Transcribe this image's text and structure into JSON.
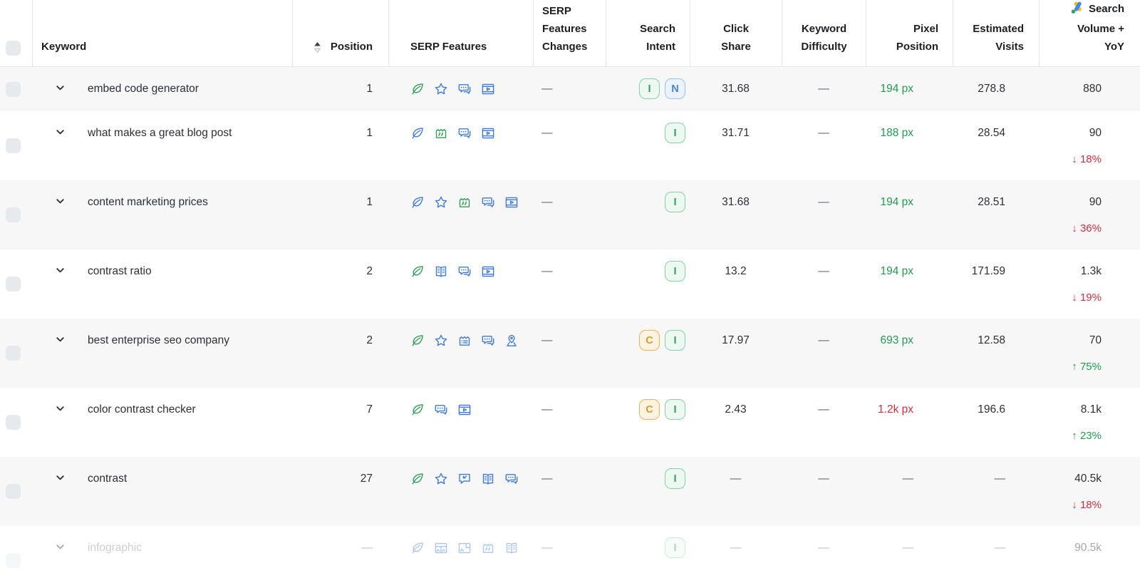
{
  "header": {
    "select_all": "",
    "columns": [
      {
        "id": "keyword",
        "label": "Keyword"
      },
      {
        "id": "position",
        "label": "Position",
        "sorted": true
      },
      {
        "id": "serp_features",
        "label": "SERP Features"
      },
      {
        "id": "serp_features_changes",
        "label": "SERP Features Changes"
      },
      {
        "id": "search_intent",
        "label": "Search Intent"
      },
      {
        "id": "click_share",
        "label": "Click Share"
      },
      {
        "id": "keyword_difficulty",
        "label": "Keyword Difficulty"
      },
      {
        "id": "pixel_position",
        "label": "Pixel Position"
      },
      {
        "id": "estimated_visits",
        "label": "Estimated Visits"
      },
      {
        "id": "search_volume",
        "label": "Search Volume + YoY",
        "icon": "google-ads-icon"
      }
    ]
  },
  "rows": [
    {
      "keyword": "embed code generator",
      "position": "1",
      "serp_features": [
        {
          "name": "organic-leaf-icon",
          "color": "green"
        },
        {
          "name": "review-stars-icon",
          "color": "blue"
        },
        {
          "name": "discussions-icon",
          "color": "blue"
        },
        {
          "name": "featured-video-icon",
          "color": "blue"
        }
      ],
      "serp_features_changes": "—",
      "search_intent": [
        {
          "label": "I",
          "type": "informational"
        },
        {
          "label": "N",
          "type": "navigational"
        }
      ],
      "click_share": "31.68",
      "keyword_difficulty": "—",
      "pixel_position": {
        "text": "194 px",
        "status": "good"
      },
      "estimated_visits": "278.8",
      "search_volume": {
        "value": "880",
        "yoy": null
      },
      "faded": false
    },
    {
      "keyword": "what makes a great blog post",
      "position": "1",
      "serp_features": [
        {
          "name": "organic-leaf-icon",
          "color": "blue"
        },
        {
          "name": "featured-snippet-icon",
          "color": "green"
        },
        {
          "name": "discussions-icon",
          "color": "blue"
        },
        {
          "name": "featured-video-icon",
          "color": "blue"
        }
      ],
      "serp_features_changes": "—",
      "search_intent": [
        {
          "label": "I",
          "type": "informational"
        }
      ],
      "click_share": "31.71",
      "keyword_difficulty": "—",
      "pixel_position": {
        "text": "188 px",
        "status": "good"
      },
      "estimated_visits": "28.54",
      "search_volume": {
        "value": "90",
        "yoy": {
          "direction": "down",
          "value": "18%"
        }
      },
      "faded": false
    },
    {
      "keyword": "content marketing prices",
      "position": "1",
      "serp_features": [
        {
          "name": "organic-leaf-icon",
          "color": "blue"
        },
        {
          "name": "review-stars-icon",
          "color": "blue"
        },
        {
          "name": "featured-snippet-icon",
          "color": "green"
        },
        {
          "name": "discussions-icon",
          "color": "blue"
        },
        {
          "name": "featured-video-icon",
          "color": "blue"
        }
      ],
      "serp_features_changes": "—",
      "search_intent": [
        {
          "label": "I",
          "type": "informational"
        }
      ],
      "click_share": "31.68",
      "keyword_difficulty": "—",
      "pixel_position": {
        "text": "194 px",
        "status": "good"
      },
      "estimated_visits": "28.51",
      "search_volume": {
        "value": "90",
        "yoy": {
          "direction": "down",
          "value": "36%"
        }
      },
      "faded": false
    },
    {
      "keyword": "contrast ratio",
      "position": "2",
      "serp_features": [
        {
          "name": "organic-leaf-icon",
          "color": "green"
        },
        {
          "name": "knowledge-panel-icon",
          "color": "blue"
        },
        {
          "name": "discussions-icon",
          "color": "blue"
        },
        {
          "name": "featured-video-icon",
          "color": "blue"
        }
      ],
      "serp_features_changes": "—",
      "search_intent": [
        {
          "label": "I",
          "type": "informational"
        }
      ],
      "click_share": "13.2",
      "keyword_difficulty": "—",
      "pixel_position": {
        "text": "194 px",
        "status": "good"
      },
      "estimated_visits": "171.59",
      "search_volume": {
        "value": "1.3k",
        "yoy": {
          "direction": "down",
          "value": "19%"
        }
      },
      "faded": false
    },
    {
      "keyword": "best enterprise seo company",
      "position": "2",
      "serp_features": [
        {
          "name": "organic-leaf-icon",
          "color": "green"
        },
        {
          "name": "review-stars-icon",
          "color": "blue"
        },
        {
          "name": "sitelinks-icon",
          "color": "blue"
        },
        {
          "name": "discussions-icon",
          "color": "blue"
        },
        {
          "name": "local-pack-icon",
          "color": "blue"
        }
      ],
      "serp_features_changes": "—",
      "search_intent": [
        {
          "label": "C",
          "type": "commercial"
        },
        {
          "label": "I",
          "type": "informational"
        }
      ],
      "click_share": "17.97",
      "keyword_difficulty": "—",
      "pixel_position": {
        "text": "693 px",
        "status": "good"
      },
      "estimated_visits": "12.58",
      "search_volume": {
        "value": "70",
        "yoy": {
          "direction": "up",
          "value": "75%"
        }
      },
      "faded": false
    },
    {
      "keyword": "color contrast checker",
      "position": "7",
      "serp_features": [
        {
          "name": "organic-leaf-icon",
          "color": "green"
        },
        {
          "name": "discussions-icon",
          "color": "blue"
        },
        {
          "name": "featured-video-icon",
          "color": "blue"
        }
      ],
      "serp_features_changes": "—",
      "search_intent": [
        {
          "label": "C",
          "type": "commercial"
        },
        {
          "label": "I",
          "type": "informational"
        }
      ],
      "click_share": "2.43",
      "keyword_difficulty": "—",
      "pixel_position": {
        "text": "1.2k px",
        "status": "bad"
      },
      "estimated_visits": "196.6",
      "search_volume": {
        "value": "8.1k",
        "yoy": {
          "direction": "up",
          "value": "23%"
        }
      },
      "faded": false
    },
    {
      "keyword": "contrast",
      "position": "27",
      "serp_features": [
        {
          "name": "organic-leaf-icon",
          "color": "green"
        },
        {
          "name": "review-stars-icon",
          "color": "blue"
        },
        {
          "name": "instant-answer-icon",
          "color": "blue"
        },
        {
          "name": "knowledge-panel-icon",
          "color": "blue"
        },
        {
          "name": "discussions-icon",
          "color": "blue"
        }
      ],
      "serp_features_changes": "—",
      "search_intent": [
        {
          "label": "I",
          "type": "informational"
        }
      ],
      "click_share": "—",
      "keyword_difficulty": "—",
      "pixel_position": {
        "text": "—",
        "status": null
      },
      "estimated_visits": "—",
      "search_volume": {
        "value": "40.5k",
        "yoy": {
          "direction": "down",
          "value": "18%"
        }
      },
      "faded": false
    },
    {
      "keyword": "infographic",
      "position": "—",
      "serp_features": [
        {
          "name": "organic-leaf-icon",
          "color": "blue"
        },
        {
          "name": "image-pack-icon",
          "color": "blue"
        },
        {
          "name": "images-icon",
          "color": "blue"
        },
        {
          "name": "featured-snippet-icon",
          "color": "blue"
        },
        {
          "name": "knowledge-panel-icon",
          "color": "blue"
        }
      ],
      "serp_features_changes": "—",
      "search_intent": [
        {
          "label": "I",
          "type": "informational"
        }
      ],
      "click_share": "—",
      "keyword_difficulty": "—",
      "pixel_position": {
        "text": "—",
        "status": null
      },
      "estimated_visits": "—",
      "search_volume": {
        "value": "90.5k",
        "yoy": null
      },
      "faded": true
    }
  ],
  "colors": {
    "green": "#1e9c50",
    "red": "#d92b3e",
    "icon-blue": "#3e79dd",
    "icon-green": "#2f9e52",
    "zebra": "#f7f7f8",
    "text": "#2d2f31",
    "header-text": "#1c1e21",
    "dash": "#5f6368",
    "border": "#e6e7e9",
    "checkbox-bg": "#e8e9ec",
    "intent-i-bg": "#edf8f1",
    "intent-i-border": "#84d3a6",
    "intent-i-text": "#2e9e63",
    "intent-n-bg": "#eaf2fd",
    "intent-n-border": "#9cc2f0",
    "intent-n-text": "#4a82d9",
    "intent-c-bg": "#fdf3e2",
    "intent-c-border": "#f0b24f",
    "intent-c-text": "#dd9a28",
    "gads-blue": "#4285f4",
    "gads-yellow": "#fbbc05",
    "gads-green": "#34a853"
  }
}
